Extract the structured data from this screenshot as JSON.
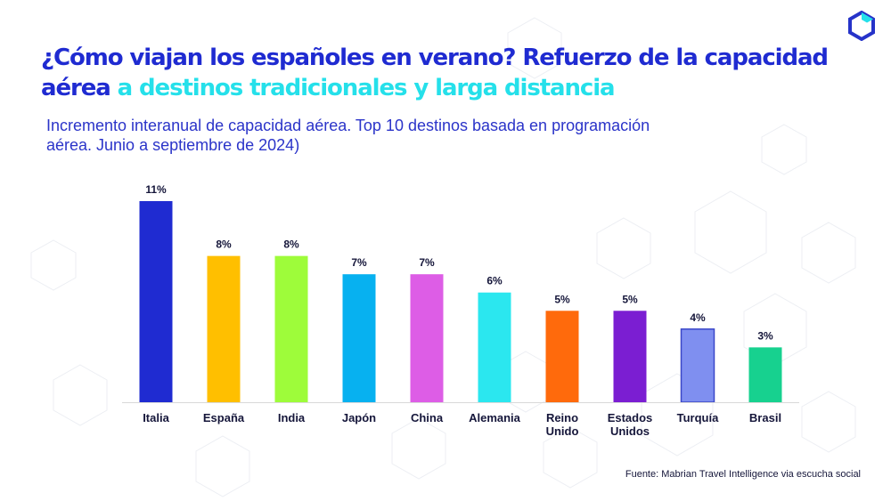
{
  "title": {
    "part1": "¿Cómo viajan los españoles en verano? Refuerzo  de la capacidad aérea ",
    "part2": "a destinos tradicionales y larga distancia"
  },
  "subtitle": "Incremento interanual  de capacidad aérea. Top 10 destinos basada en programación aérea. Junio a septiembre de 2024)",
  "source": "Fuente: Mabrian Travel Intelligence via escucha social",
  "colors": {
    "title_primary": "#1f2bd1",
    "title_accent": "#25e0ea"
  },
  "logo": {
    "icon": "hexagon-logo-icon"
  },
  "chart_data": {
    "type": "bar",
    "categories": [
      "Italia",
      "España",
      "India",
      "Japón",
      "China",
      "Alemania",
      "Reino Unido",
      "Estados Unidos",
      "Turquía",
      "Brasil"
    ],
    "values": [
      11,
      8,
      8,
      7,
      7,
      6,
      5,
      5,
      4,
      3
    ],
    "value_labels": [
      "11%",
      "8%",
      "8%",
      "7%",
      "7%",
      "6%",
      "5%",
      "5%",
      "4%",
      "3%"
    ],
    "unit": "%",
    "colors": [
      "#1f2bd1",
      "#ffbf00",
      "#9efc3a",
      "#07b1f0",
      "#dd5de6",
      "#2be7ef",
      "#ff6a0c",
      "#7b1ed2",
      "#7f8ff0",
      "#17d18f"
    ],
    "ylim": [
      0,
      11
    ],
    "grid": false,
    "legend": "none"
  }
}
